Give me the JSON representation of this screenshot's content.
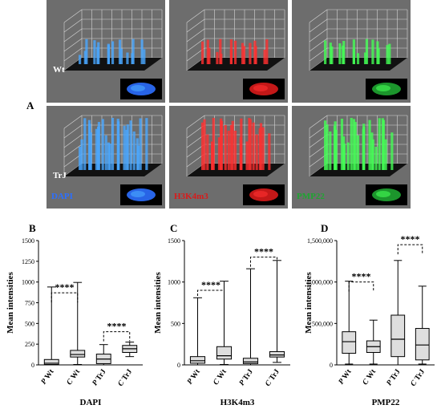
{
  "panel_labels": {
    "a": "A",
    "b": "B",
    "c": "C",
    "d": "D"
  },
  "microscopy": {
    "row_labels": [
      "Wt",
      "TrJ"
    ],
    "channels": [
      {
        "label": "DAPI",
        "color": "#2c6fff",
        "glow": "#4aa8ff"
      },
      {
        "label": "H3K4m3",
        "color": "#d81b1b",
        "glow": "#ff3030"
      },
      {
        "label": "PMP22",
        "color": "#1fa531",
        "glow": "#44ff55"
      }
    ],
    "tile_background": "#6d6d6d"
  },
  "chart_data": [
    {
      "type": "boxplot",
      "panel": "B",
      "xlabel": "DAPI",
      "ylabel": "Mean intensities",
      "ylim": [
        0,
        1500
      ],
      "yticks": [
        "0",
        "250",
        "500",
        "750",
        "1000",
        "1250",
        "1500"
      ],
      "yticks_values": [
        0,
        250,
        500,
        750,
        1000,
        1250,
        1500
      ],
      "categories": [
        "P Wt",
        "C Wt",
        "P TrJ",
        "C TrJ"
      ],
      "category_prefix": [
        "P",
        "C",
        "P",
        "C"
      ],
      "category_name": [
        "Wt",
        "Wt",
        "TrJ",
        "TrJ"
      ],
      "boxes": [
        {
          "min": 0,
          "q1": 5,
          "median": 20,
          "q3": 65,
          "max": 940
        },
        {
          "min": 5,
          "q1": 95,
          "median": 125,
          "q3": 175,
          "max": 995
        },
        {
          "min": 0,
          "q1": 15,
          "median": 70,
          "q3": 130,
          "max": 245
        },
        {
          "min": 100,
          "q1": 150,
          "median": 195,
          "q3": 235,
          "max": 275
        }
      ],
      "significance": [
        {
          "from": 0,
          "to": 1,
          "y": 870,
          "label": "****"
        },
        {
          "from": 2,
          "to": 3,
          "y": 400,
          "label": "****"
        }
      ]
    },
    {
      "type": "boxplot",
      "panel": "C",
      "xlabel": "H3K4m3",
      "ylabel": "Mean intensities",
      "ylim": [
        0,
        1500
      ],
      "yticks": [
        "0",
        "500",
        "1000",
        "1500"
      ],
      "yticks_values": [
        0,
        500,
        1000,
        1500
      ],
      "categories": [
        "P Wt",
        "C Wt",
        "P TrJ",
        "C TrJ"
      ],
      "category_prefix": [
        "P",
        "C",
        "P",
        "C"
      ],
      "category_name": [
        "Wt",
        "Wt",
        "TrJ",
        "TrJ"
      ],
      "boxes": [
        {
          "min": 0,
          "q1": 20,
          "median": 50,
          "q3": 100,
          "max": 810
        },
        {
          "min": 5,
          "q1": 70,
          "median": 110,
          "q3": 220,
          "max": 1010
        },
        {
          "min": 0,
          "q1": 15,
          "median": 35,
          "q3": 80,
          "max": 1160
        },
        {
          "min": 30,
          "q1": 95,
          "median": 120,
          "q3": 160,
          "max": 1260
        }
      ],
      "significance": [
        {
          "from": 0,
          "to": 1,
          "y": 900,
          "label": "****"
        },
        {
          "from": 2,
          "to": 3,
          "y": 1300,
          "label": "****"
        }
      ]
    },
    {
      "type": "boxplot",
      "panel": "D",
      "xlabel": "PMP22",
      "ylabel": "Mean intensities",
      "ylim": [
        0,
        1500000
      ],
      "yticks": [
        "0",
        "500,000",
        "1,000,000",
        "1,500,000"
      ],
      "yticks_values": [
        0,
        500000,
        1000000,
        1500000
      ],
      "categories": [
        "P Wt",
        "C Wt",
        "P TrJ",
        "C TrJ"
      ],
      "category_prefix": [
        "P",
        "C",
        "P",
        "C"
      ],
      "category_name": [
        "Wt",
        "Wt",
        "TrJ",
        "TrJ"
      ],
      "boxes": [
        {
          "min": 10000,
          "q1": 140000,
          "median": 280000,
          "q3": 400000,
          "max": 1010000
        },
        {
          "min": 10000,
          "q1": 150000,
          "median": 220000,
          "q3": 290000,
          "max": 540000
        },
        {
          "min": 0,
          "q1": 100000,
          "median": 310000,
          "q3": 600000,
          "max": 1260000
        },
        {
          "min": 10000,
          "q1": 60000,
          "median": 240000,
          "q3": 440000,
          "max": 950000
        }
      ],
      "significance": [
        {
          "from": 0,
          "to": 1,
          "y": 1000000,
          "label": "****"
        },
        {
          "from": 2,
          "to": 3,
          "y": 1450000,
          "label": "****"
        }
      ]
    }
  ]
}
